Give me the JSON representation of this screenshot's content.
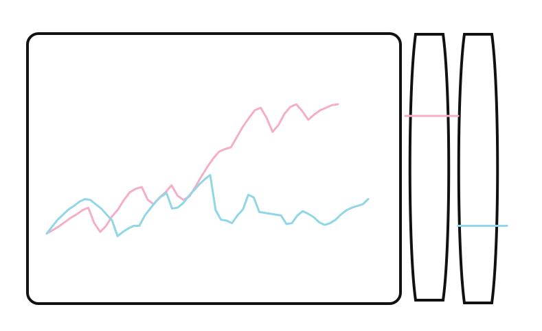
{
  "colors": {
    "background": "#ffffff",
    "outline": "#111111",
    "series_pink": "#f5adc8",
    "series_blue": "#8fd6e6"
  },
  "chart_data": {
    "type": "line",
    "xlabel": "",
    "ylabel": "",
    "grid": false,
    "series": [
      {
        "values": [
          28,
          32,
          36,
          41,
          46,
          50,
          55,
          58,
          40,
          30,
          37,
          48,
          56,
          67,
          76,
          80,
          82,
          67,
          62,
          70,
          76,
          84,
          72,
          67,
          71,
          82,
          94,
          105,
          115,
          123,
          126,
          128,
          140,
          152,
          162,
          171,
          174,
          162,
          146,
          154,
          167,
          175,
          178,
          170,
          160,
          166,
          171,
          174,
          177,
          178
        ],
        "color": "#f5adc8"
      },
      {
        "values": [
          28,
          36,
          44,
          50,
          56,
          60,
          65,
          68,
          67,
          62,
          57,
          50,
          43,
          25,
          30,
          34,
          37,
          37,
          49,
          57,
          65,
          71,
          75,
          57,
          58,
          63,
          71,
          78,
          85,
          91,
          96,
          55,
          44,
          43,
          40,
          49,
          56,
          73,
          70,
          53,
          52,
          51,
          50,
          49,
          39,
          40,
          49,
          54,
          51,
          47,
          41,
          38,
          40,
          44,
          50,
          55,
          58,
          60,
          62,
          68
        ],
        "color": "#8fd6e6"
      }
    ],
    "ylim": [
      0,
      260
    ]
  }
}
